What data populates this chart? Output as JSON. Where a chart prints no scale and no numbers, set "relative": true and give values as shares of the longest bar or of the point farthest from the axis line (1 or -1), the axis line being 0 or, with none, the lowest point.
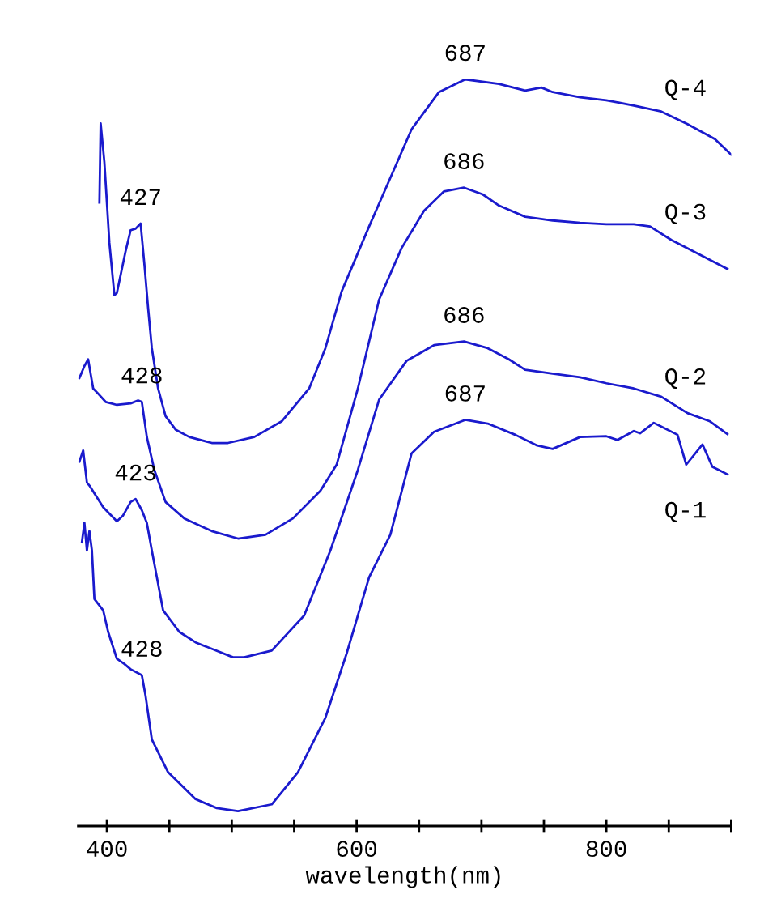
{
  "chart_data": {
    "type": "line",
    "xlabel": "wavelength(nm)",
    "relative": true,
    "tick_labels": "x",
    "xlim": [
      377,
      900
    ],
    "xticks": [
      400,
      {
        "value": 450,
        "label": null
      },
      {
        "value": 500,
        "label": null
      },
      {
        "value": 550,
        "label": null
      },
      600,
      {
        "value": 650,
        "label": null
      },
      {
        "value": 700,
        "label": null
      },
      {
        "value": 750,
        "label": null
      },
      800,
      {
        "value": 850,
        "label": null
      },
      {
        "value": 900,
        "label": null
      }
    ],
    "series": [
      {
        "name": "Q-4",
        "color": "#1a1acd",
        "x": [
          394,
          395,
          398,
          402,
          406,
          408,
          415,
          419,
          423,
          427,
          430,
          433,
          436,
          441,
          447,
          455,
          466,
          484,
          497,
          518,
          540,
          562,
          575,
          588,
          610,
          627,
          644,
          666,
          687,
          714,
          735,
          748,
          757,
          779,
          800,
          822,
          844,
          865,
          887,
          900
        ],
        "values": [
          0.835,
          0.941,
          0.889,
          0.781,
          0.711,
          0.714,
          0.77,
          0.798,
          0.8,
          0.807,
          0.753,
          0.694,
          0.64,
          0.586,
          0.549,
          0.531,
          0.521,
          0.513,
          0.513,
          0.521,
          0.542,
          0.586,
          0.64,
          0.716,
          0.803,
          0.868,
          0.933,
          0.983,
          1.0,
          0.994,
          0.985,
          0.989,
          0.983,
          0.976,
          0.972,
          0.965,
          0.957,
          0.94,
          0.92,
          0.899
        ]
      },
      {
        "name": "Q-3",
        "color": "#1a1acd",
        "x": [
          378,
          382,
          385,
          389,
          393,
          399,
          408,
          419,
          425,
          428,
          432,
          438,
          447,
          462,
          484,
          505,
          527,
          549,
          571,
          584,
          601,
          618,
          636,
          654,
          670,
          686,
          701,
          714,
          735,
          757,
          779,
          800,
          822,
          835,
          852,
          874,
          897
        ],
        "values": [
          0.6,
          0.616,
          0.625,
          0.586,
          0.579,
          0.568,
          0.564,
          0.566,
          0.57,
          0.568,
          0.521,
          0.477,
          0.434,
          0.412,
          0.395,
          0.385,
          0.39,
          0.412,
          0.449,
          0.484,
          0.586,
          0.705,
          0.774,
          0.824,
          0.85,
          0.855,
          0.846,
          0.831,
          0.816,
          0.811,
          0.808,
          0.806,
          0.806,
          0.803,
          0.785,
          0.766,
          0.746
        ]
      },
      {
        "name": "Q-2",
        "color": "#1a1acd",
        "x": [
          378,
          381,
          384,
          386,
          397,
          408,
          413,
          419,
          423,
          428,
          432,
          436,
          445,
          458,
          471,
          501,
          510,
          532,
          558,
          579,
          601,
          618,
          640,
          662,
          686,
          705,
          722,
          735,
          757,
          779,
          800,
          822,
          844,
          865,
          883,
          897
        ],
        "values": [
          0.488,
          0.503,
          0.46,
          0.456,
          0.427,
          0.408,
          0.416,
          0.434,
          0.438,
          0.423,
          0.406,
          0.369,
          0.289,
          0.26,
          0.246,
          0.226,
          0.226,
          0.235,
          0.282,
          0.369,
          0.477,
          0.571,
          0.623,
          0.644,
          0.649,
          0.64,
          0.625,
          0.611,
          0.606,
          0.601,
          0.593,
          0.586,
          0.575,
          0.553,
          0.542,
          0.525
        ]
      },
      {
        "name": "Q-1",
        "color": "#1a1acd",
        "x": [
          380,
          382,
          384,
          386,
          388,
          390,
          397,
          401,
          408,
          414,
          419,
          428,
          431,
          436,
          449,
          471,
          488,
          505,
          532,
          553,
          575,
          592,
          610,
          627,
          644,
          662,
          687,
          705,
          727,
          744,
          757,
          779,
          800,
          809,
          822,
          827,
          838,
          844,
          857,
          864,
          877,
          885,
          890,
          897
        ],
        "values": [
          0.38,
          0.406,
          0.369,
          0.395,
          0.369,
          0.304,
          0.289,
          0.26,
          0.224,
          0.217,
          0.21,
          0.202,
          0.174,
          0.116,
          0.072,
          0.036,
          0.024,
          0.02,
          0.029,
          0.072,
          0.145,
          0.231,
          0.333,
          0.39,
          0.499,
          0.528,
          0.544,
          0.539,
          0.524,
          0.51,
          0.505,
          0.521,
          0.522,
          0.517,
          0.529,
          0.526,
          0.54,
          0.535,
          0.524,
          0.484,
          0.511,
          0.481,
          0.477,
          0.471
        ]
      }
    ],
    "annotations": [
      {
        "text": "427",
        "x": 427,
        "y": 0.807
      },
      {
        "text": "687",
        "x": 687,
        "y": 1.0
      },
      {
        "text": "428",
        "x": 428,
        "y": 0.568
      },
      {
        "text": "686",
        "x": 686,
        "y": 0.855
      },
      {
        "text": "423",
        "x": 423,
        "y": 0.438
      },
      {
        "text": "686",
        "x": 686,
        "y": 0.649
      },
      {
        "text": "428",
        "x": 428,
        "y": 0.202
      },
      {
        "text": "687",
        "x": 687,
        "y": 0.544
      }
    ]
  }
}
